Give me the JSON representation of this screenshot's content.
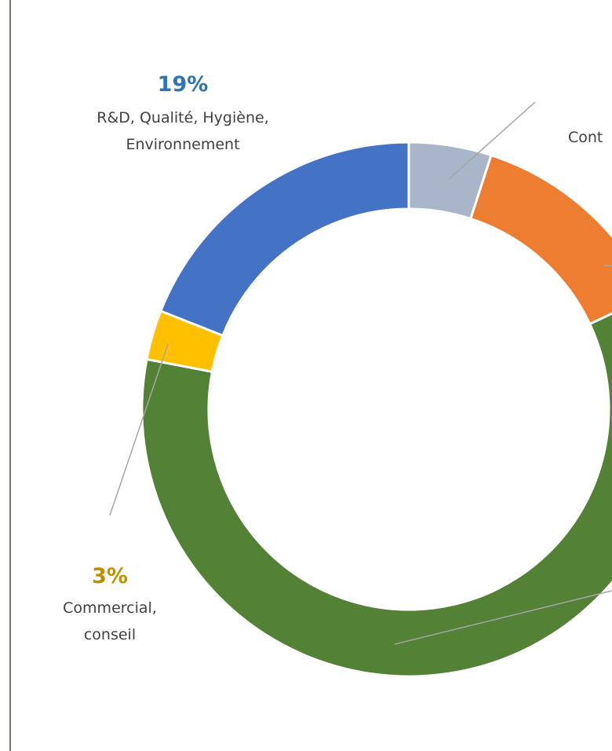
{
  "chart_data": {
    "type": "pie",
    "variant": "donut",
    "start_angle_deg": 0,
    "direction": "clockwise",
    "slices": [
      {
        "key": "grey",
        "percent": 5,
        "color": "#a9b6c9",
        "label_text": "",
        "label_pct": ""
      },
      {
        "key": "orange",
        "percent": 13,
        "color": "#ed7d31",
        "label_text": "Cont",
        "label_pct": ""
      },
      {
        "key": "green",
        "percent": 60,
        "color": "#538135",
        "label_text": "",
        "label_pct": ""
      },
      {
        "key": "yellow",
        "percent": 3,
        "color": "#ffc000",
        "label_text": "Commercial, conseil",
        "label_pct": "3%"
      },
      {
        "key": "blue",
        "percent": 19,
        "color": "#4472c4",
        "label_text": "R&D, Qualité, Hygiène, Environnement",
        "label_pct": "19%"
      }
    ],
    "labels": {
      "blue": {
        "pct": "19%",
        "lines": [
          "R&D, Qualité, Hygiène,",
          "Environnement"
        ],
        "color": "#2e75b6"
      },
      "yellow": {
        "pct": "3%",
        "lines": [
          "Commercial,",
          "conseil"
        ],
        "color": "#bf9000"
      },
      "orange": {
        "lines": [
          "Cont"
        ]
      }
    },
    "leader_line_color": "#a6a6a6",
    "title": "",
    "legend": "none"
  }
}
